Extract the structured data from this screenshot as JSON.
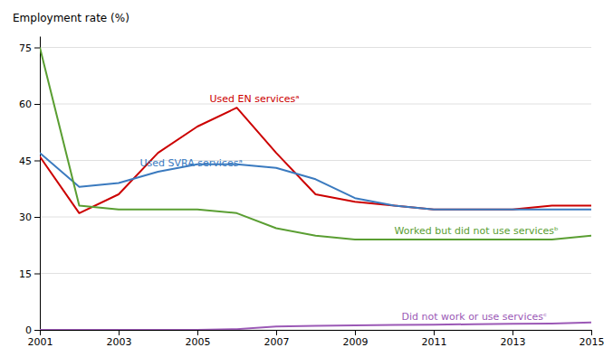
{
  "chart_data": {
    "type": "line",
    "ylabel": "Employment rate (%)",
    "x": [
      2001,
      2002,
      2003,
      2004,
      2005,
      2006,
      2007,
      2008,
      2009,
      2010,
      2011,
      2012,
      2013,
      2014,
      2015
    ],
    "series": [
      {
        "name": "Used EN servicesᵃ",
        "color": "#cc0000",
        "values": [
          46,
          31,
          36,
          47,
          54,
          59,
          47,
          36,
          34,
          33,
          32,
          32,
          32,
          33,
          33
        ]
      },
      {
        "name": "Used SVRA servicesᵃ",
        "color": "#3a7abf",
        "values": [
          47,
          38,
          39,
          42,
          44,
          44,
          43,
          40,
          35,
          33,
          32,
          32,
          32,
          32,
          32
        ]
      },
      {
        "name": "Worked but did not use servicesᵇ",
        "color": "#5a9e32",
        "values": [
          75,
          33,
          32,
          32,
          32,
          31,
          27,
          25,
          24,
          24,
          24,
          24,
          24,
          24,
          25
        ]
      },
      {
        "name": "Did not work or use servicesᶜ",
        "color": "#9b59b6",
        "values": [
          0,
          0,
          0,
          0,
          0,
          0.2,
          0.9,
          1.1,
          1.2,
          1.3,
          1.4,
          1.5,
          1.6,
          1.7,
          2.0
        ]
      }
    ],
    "ylim": [
      0,
      78
    ],
    "yticks": [
      0,
      15,
      30,
      45,
      60,
      75
    ],
    "xlim": [
      2001,
      2015
    ],
    "xticks": [
      2001,
      2003,
      2005,
      2007,
      2009,
      2011,
      2013,
      2015
    ],
    "grid": true
  }
}
